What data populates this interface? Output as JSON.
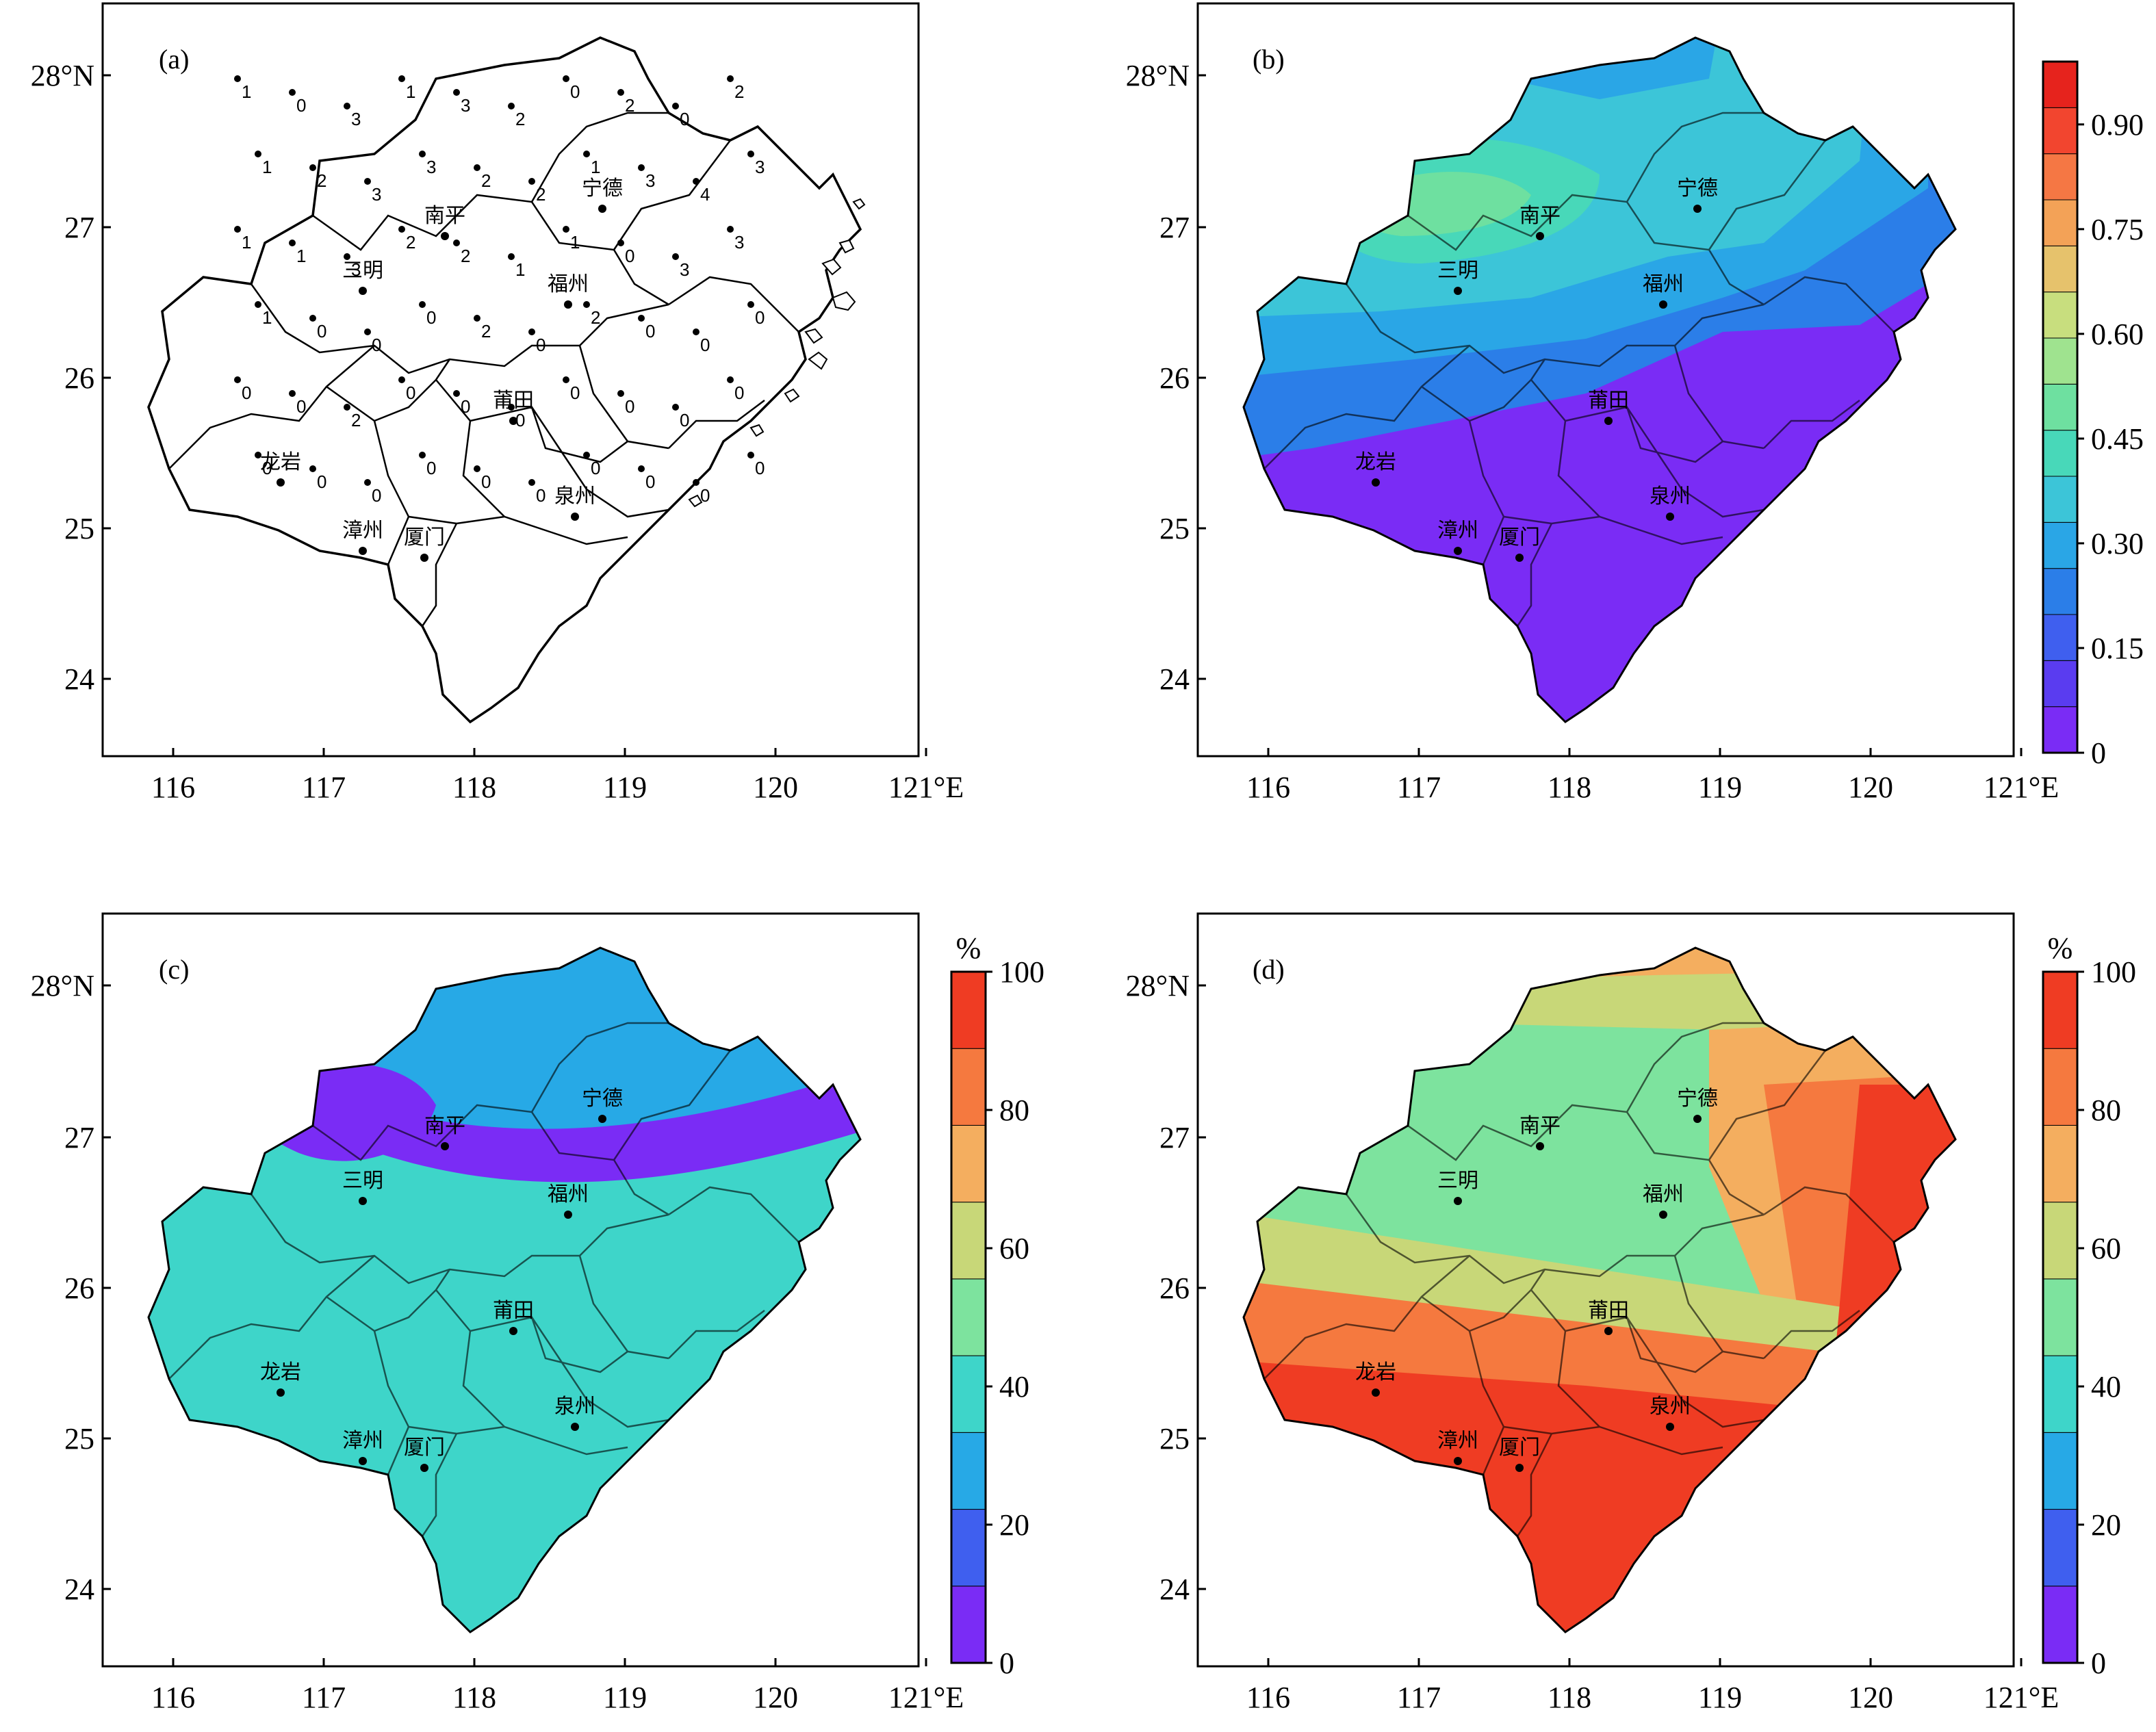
{
  "axes": {
    "x_ticks": [
      "116",
      "117",
      "118",
      "119",
      "120",
      "121°E"
    ],
    "y_ticks": [
      "28°N",
      "27",
      "26",
      "25",
      "24"
    ]
  },
  "cities": [
    "南平",
    "宁德",
    "三明",
    "福州",
    "莆田",
    "龙岩",
    "泉州",
    "漳州",
    "厦门"
  ],
  "panels": [
    {
      "label": "(a)",
      "kind": "station-counts"
    },
    {
      "label": "(b)",
      "kind": "probability",
      "colorbar": {
        "ticks": [
          "0",
          "0.15",
          "0.30",
          "0.45",
          "0.60",
          "0.75",
          "0.90"
        ],
        "unit": ""
      }
    },
    {
      "label": "(c)",
      "kind": "percent",
      "colorbar": {
        "ticks": [
          "0",
          "20",
          "40",
          "60",
          "80",
          "100"
        ],
        "unit": "%"
      }
    },
    {
      "label": "(d)",
      "kind": "percent",
      "colorbar": {
        "ticks": [
          "0",
          "20",
          "40",
          "60",
          "80",
          "100"
        ],
        "unit": "%"
      }
    }
  ],
  "station_values": [
    "1",
    "0",
    "3",
    "1",
    "3",
    "2",
    "0",
    "2",
    "0",
    "2",
    "1",
    "2",
    "3",
    "3",
    "2",
    "2",
    "1",
    "3",
    "4",
    "3",
    "1",
    "1",
    "3",
    "2",
    "2",
    "1",
    "1",
    "0",
    "3",
    "3",
    "1",
    "0",
    "0",
    "0",
    "2",
    "0",
    "2",
    "0",
    "0",
    "0",
    "0",
    "0",
    "2",
    "0",
    "0",
    "0",
    "0",
    "0",
    "0",
    "0",
    "0",
    "0",
    "0",
    "0",
    "0",
    "0",
    "0",
    "0",
    "0",
    "0"
  ],
  "colors": {
    "b_scale": [
      "#7a2cf5",
      "#5a3cf0",
      "#3f5fef",
      "#2b7ee8",
      "#2aa6e6",
      "#3cc5d8",
      "#48d8b9",
      "#6ee0a0",
      "#9fe38f",
      "#c8de7e",
      "#e6c26c",
      "#f3a257",
      "#f57744",
      "#f2452f",
      "#e6231d"
    ],
    "pct_scale": [
      "#7a2cf5",
      "#3f5fef",
      "#27a9e6",
      "#3ed5c9",
      "#7de39e",
      "#c8d778",
      "#f4ae5f",
      "#f5793f",
      "#ef3c23"
    ]
  }
}
